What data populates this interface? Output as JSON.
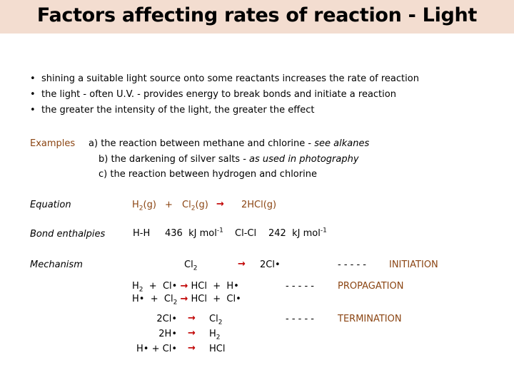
{
  "title": "Factors affecting rates of reaction - Light",
  "colors": {
    "title_band": "#f3ddd0",
    "accent": "#8b4513",
    "arrow": "#c00000"
  },
  "bullets": [
    "shining a suitable light source onto some reactants increases the rate of reaction",
    "the light - often U.V. - provides energy to break bonds and initiate a reaction",
    "the greater the intensity of the light, the greater the effect"
  ],
  "examples": {
    "label": "Examples",
    "items": [
      {
        "marker": "a)",
        "text": "the reaction between methane and chlorine  - ",
        "note": "see alkanes"
      },
      {
        "marker": "b)",
        "text": "the darkening of silver salts - ",
        "note": "as used in photography"
      },
      {
        "marker": "c)",
        "text": "the reaction between hydrogen and chlorine",
        "note": ""
      }
    ]
  },
  "equation": {
    "label": "Equation",
    "h2": "H",
    "h2_sub": "2",
    "h2_state": "(g)",
    "plus": "+",
    "cl2": "Cl",
    "cl2_sub": "2",
    "cl2_state": "(g)",
    "product": "2HCl(g)"
  },
  "bond_enthalpies": {
    "label": "Bond enthalpies",
    "hh_bond": "H-H",
    "hh_value": "436",
    "unit": "kJ mol",
    "unit_exp": "-1",
    "clcl_bond": "Cl-Cl",
    "clcl_value": "242"
  },
  "mechanism": {
    "label": "Mechanism",
    "dashes": "- - - - -",
    "initiation": {
      "lhs": "Cl",
      "lhs_sub": "2",
      "rhs": "2Cl•",
      "stage": "INITIATION"
    },
    "propagation": {
      "stage": "PROPAGATION",
      "step1": {
        "a": "H",
        "a_sub": "2",
        "plus": "+",
        "b": "Cl•",
        "c": "HCl",
        "d": "H•"
      },
      "step2": {
        "a": "H•",
        "plus": "+",
        "b": "Cl",
        "b_sub": "2",
        "c": "HCl",
        "d": "Cl•"
      }
    },
    "termination": {
      "stage": "TERMINATION",
      "lhs": [
        "2Cl•",
        "2H•",
        "H• + Cl•"
      ],
      "rhs": [
        {
          "text": "Cl",
          "sub": "2"
        },
        {
          "text": "H",
          "sub": "2"
        },
        {
          "text": "HCl",
          "sub": ""
        }
      ]
    }
  },
  "icons": {
    "arrow": "right-arrow-icon",
    "bullet": "bullet-icon"
  }
}
